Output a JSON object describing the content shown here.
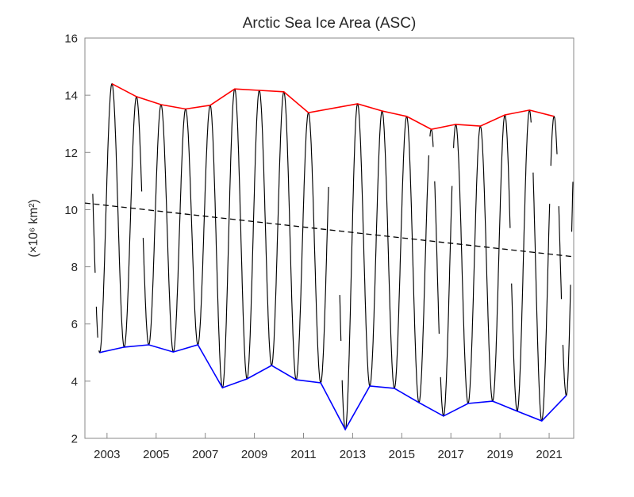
{
  "title": "Arctic Sea Ice Area (ASC)",
  "colors": {
    "background": "#ffffff",
    "axis_box": "#8a8a8a",
    "text": "#262626",
    "monthly_line": "#000000",
    "max_envelope": "#ff0000",
    "min_envelope": "#0000ff",
    "trend_line": "#000000"
  },
  "chart_data": {
    "type": "line",
    "title": "Arctic Sea Ice Area (ASC)",
    "xlabel": "",
    "ylabel": "(×10⁶ km²)",
    "xlim": [
      2002.1,
      2022.0
    ],
    "ylim": [
      2,
      16
    ],
    "xticks": [
      2003,
      2005,
      2007,
      2009,
      2011,
      2013,
      2015,
      2017,
      2019,
      2021
    ],
    "yticks": [
      2,
      4,
      6,
      8,
      10,
      12,
      14,
      16
    ],
    "grid": false,
    "box": true,
    "legend": null,
    "series": [
      {
        "name": "annual maximum envelope",
        "color": "#ff0000",
        "style": "solid",
        "x": [
          2003.2,
          2004.2,
          2005.2,
          2006.2,
          2007.2,
          2008.2,
          2009.2,
          2010.2,
          2011.2,
          2013.2,
          2014.2,
          2015.2,
          2016.2,
          2017.2,
          2018.2,
          2019.2,
          2020.2,
          2021.2
        ],
        "y": [
          14.4,
          13.95,
          13.67,
          13.52,
          13.65,
          14.22,
          14.17,
          14.12,
          13.39,
          13.7,
          13.45,
          13.26,
          12.81,
          12.98,
          12.92,
          13.31,
          13.48,
          13.26
        ]
      },
      {
        "name": "annual minimum envelope",
        "color": "#0000ff",
        "style": "solid",
        "x": [
          2002.7,
          2003.7,
          2004.7,
          2005.7,
          2006.7,
          2007.7,
          2008.7,
          2009.7,
          2010.7,
          2011.7,
          2012.7,
          2013.7,
          2014.7,
          2015.7,
          2016.7,
          2017.7,
          2018.7,
          2019.7,
          2020.7,
          2021.7
        ],
        "y": [
          5.0,
          5.19,
          5.27,
          5.02,
          5.27,
          3.77,
          4.08,
          4.55,
          4.05,
          3.94,
          2.31,
          3.83,
          3.75,
          3.25,
          2.78,
          3.22,
          3.3,
          2.95,
          2.61,
          3.5
        ]
      },
      {
        "name": "linear trend",
        "color": "#000000",
        "style": "dashed",
        "x": [
          2002.1,
          2022.0
        ],
        "y": [
          10.23,
          8.35
        ]
      },
      {
        "name": "monthly sea ice area",
        "color": "#000000",
        "style": "solid",
        "seasonal_cycle": {
          "max_month_frac": 0.2,
          "min_month_frac": 0.7
        },
        "t_start": 2002.42,
        "t_end": 2021.97,
        "envelope_t": [
          2002.2,
          2002.7,
          2003.2,
          2003.7,
          2004.2,
          2004.7,
          2005.2,
          2005.7,
          2006.2,
          2006.7,
          2007.2,
          2007.7,
          2008.2,
          2008.7,
          2009.2,
          2009.7,
          2010.2,
          2010.7,
          2011.2,
          2011.7,
          2012.2,
          2012.7,
          2013.2,
          2013.7,
          2014.2,
          2014.7,
          2015.2,
          2015.7,
          2016.2,
          2016.7,
          2017.2,
          2017.7,
          2018.2,
          2018.7,
          2019.2,
          2019.7,
          2020.2,
          2020.7,
          2021.2,
          2021.7,
          2022.1
        ],
        "envelope_v": [
          14.35,
          5.0,
          14.4,
          5.19,
          13.95,
          5.27,
          13.67,
          5.02,
          13.52,
          5.27,
          13.65,
          3.77,
          14.22,
          4.08,
          14.17,
          4.55,
          14.12,
          4.05,
          13.39,
          3.94,
          13.55,
          2.31,
          13.7,
          3.83,
          13.45,
          3.75,
          13.26,
          3.25,
          12.81,
          2.78,
          12.98,
          3.22,
          12.92,
          3.3,
          13.31,
          2.95,
          13.48,
          2.61,
          13.26,
          3.5,
          13.4
        ],
        "data_gaps": [
          [
            2002.52,
            2002.56
          ],
          [
            2002.63,
            2002.67
          ],
          [
            2004.42,
            2004.47
          ],
          [
            2012.03,
            2012.47
          ],
          [
            2012.53,
            2012.56
          ],
          [
            2016.1,
            2016.14
          ],
          [
            2016.28,
            2016.33
          ],
          [
            2016.52,
            2016.57
          ],
          [
            2017.05,
            2017.1
          ],
          [
            2019.42,
            2019.47
          ],
          [
            2020.27,
            2020.34
          ],
          [
            2021.02,
            2021.06
          ],
          [
            2021.33,
            2021.38
          ],
          [
            2021.5,
            2021.55
          ],
          [
            2021.88,
            2021.91
          ]
        ]
      }
    ]
  }
}
